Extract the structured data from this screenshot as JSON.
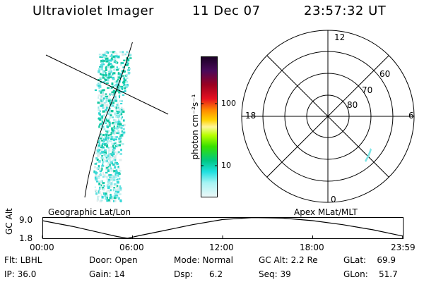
{
  "header": {
    "title": "Ultraviolet Imager",
    "date": "11 Dec 07",
    "time": "23:57:32 UT"
  },
  "geo_panel": {
    "label": "Geographic Lat/Lon"
  },
  "colorbar": {
    "unit_label": "photon cm⁻²s⁻¹",
    "ticks": [
      "100",
      "10"
    ]
  },
  "polar_plot": {
    "label": "Apex MLat/MLT",
    "mlt_labels": [
      "12",
      "18",
      "6",
      "0"
    ],
    "lat_labels": [
      "60",
      "70",
      "80"
    ]
  },
  "altitude_plot": {
    "ylabel": "GC Alt",
    "yticks": [
      "9.0",
      "1.8"
    ],
    "xticks": [
      "00:00",
      "06:00",
      "12:00",
      "18:00",
      "23:59"
    ]
  },
  "chart_data": {
    "type": "line",
    "title": "",
    "xlabel": "",
    "ylabel": "GC Alt",
    "x": [
      "00:00",
      "01:00",
      "02:00",
      "03:00",
      "04:00",
      "05:00",
      "05:40",
      "06:30",
      "08:00",
      "10:00",
      "12:00",
      "14:00",
      "16:00",
      "18:00",
      "20:00",
      "22:00",
      "23:59"
    ],
    "series": [
      {
        "values": [
          8.0,
          7.0,
          6.0,
          4.8,
          3.6,
          2.4,
          1.8,
          2.8,
          4.4,
          6.6,
          8.4,
          9.1,
          8.9,
          8.0,
          6.6,
          4.8,
          2.6
        ]
      }
    ],
    "ylim": [
      1.8,
      9.0
    ],
    "grid": false
  },
  "status": {
    "filter": "Flt: LBHL",
    "ip": "IP: 36.0",
    "door": "Door: Open",
    "gain": "Gain: 14",
    "mode": "Mode: Normal",
    "dsp": "Dsp:      6.2",
    "gc_alt": "GC Alt: 2.2 Re",
    "seq": "Seq: 39",
    "glat": "GLat:    69.9",
    "glon": "GLon:    51.7"
  }
}
